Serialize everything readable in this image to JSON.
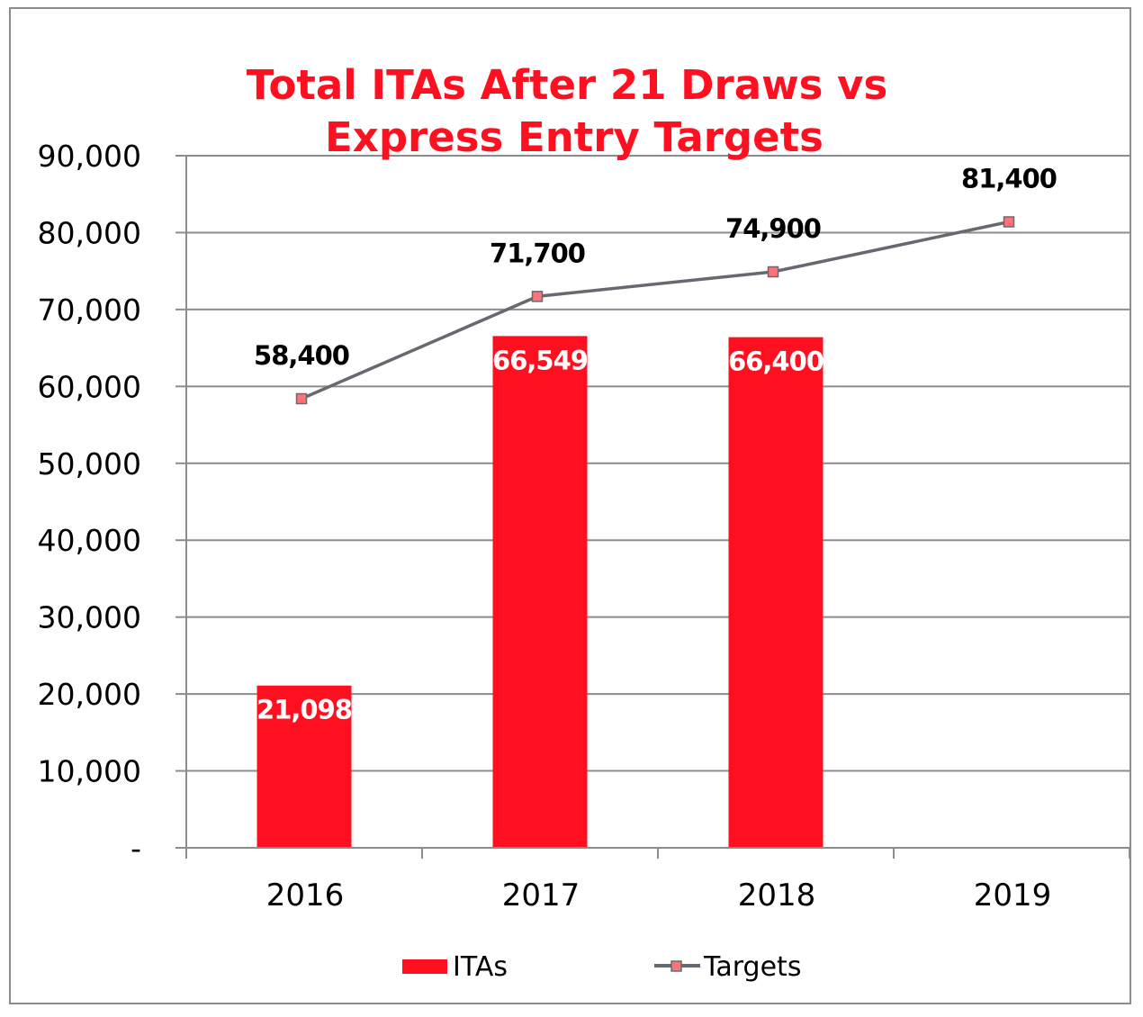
{
  "chart_data": {
    "type": "bar",
    "title_lines": [
      "Total ITAs After 21 Draws vs",
      "Express Entry Targets"
    ],
    "xlabel": "",
    "ylabel": "",
    "categories": [
      "2016",
      "2017",
      "2018",
      "2019"
    ],
    "ylim": [
      0,
      90000
    ],
    "yticks": [
      0,
      10000,
      20000,
      30000,
      40000,
      50000,
      60000,
      70000,
      80000,
      90000
    ],
    "ytick_labels": [
      "-",
      "10,000",
      "20,000",
      "30,000",
      "40,000",
      "50,000",
      "60,000",
      "70,000",
      "80,000",
      "90,000"
    ],
    "grid": true,
    "legend_position": "bottom",
    "series": [
      {
        "name": "ITAs",
        "type": "bar",
        "color": "#ff1020",
        "values": [
          21098,
          66549,
          66400,
          null
        ],
        "labels": [
          "21,098",
          "66,549",
          "66,400",
          null
        ]
      },
      {
        "name": "Targets",
        "type": "line",
        "line_color": "#666a70",
        "marker_color": "#ff7378",
        "marker": "square",
        "values": [
          58400,
          71700,
          74900,
          81400
        ],
        "labels": [
          "58,400",
          "71,700",
          "74,900",
          "81,400"
        ]
      }
    ]
  }
}
